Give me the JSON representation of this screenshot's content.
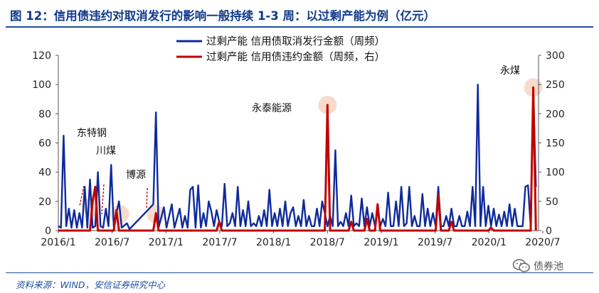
{
  "title": "图 12：信用债违约对取消发行的影响一般持续 1-3 周：以过剩产能为例（亿元）",
  "source": "资料来源：WIND，安信证券研究中心",
  "watermark": {
    "text": "债券池",
    "icon": "wechat-icon"
  },
  "colors": {
    "blue": "#0E2A9C",
    "red": "#C00000",
    "title": "#0E3A8C",
    "highlight": "#F6D5C4"
  },
  "chart_data": {
    "type": "line",
    "x_labels": [
      "2016/1",
      "2016/7",
      "2017/1",
      "2017/7",
      "2018/1",
      "2018/7",
      "2019/1",
      "2019/7",
      "2020/1",
      "2020/7"
    ],
    "y_left": {
      "min": 0,
      "max": 120,
      "ticks": [
        0,
        20,
        40,
        60,
        80,
        100,
        120
      ]
    },
    "y_right": {
      "min": 0,
      "max": 300,
      "ticks": [
        0,
        50,
        100,
        150,
        200,
        250,
        300
      ]
    },
    "legend": {
      "placement": "top-center",
      "items": [
        "过剩产能 信用债取消发行金额（周频）",
        "过剩产能 信用债违约金额（周频，右）"
      ]
    },
    "series": [
      {
        "name": "过剩产能 信用债取消发行金额（周频）",
        "axis": "left",
        "color": "#0E2A9C",
        "points": [
          [
            0,
            3
          ],
          [
            1,
            2
          ],
          [
            2,
            65
          ],
          [
            3,
            3
          ],
          [
            4,
            15
          ],
          [
            5,
            2
          ],
          [
            6,
            14
          ],
          [
            7,
            2
          ],
          [
            8,
            12
          ],
          [
            9,
            2
          ],
          [
            10,
            30
          ],
          [
            11,
            2
          ],
          [
            12,
            35
          ],
          [
            13,
            2
          ],
          [
            14,
            3
          ],
          [
            15,
            40
          ],
          [
            16,
            3
          ],
          [
            17,
            2
          ],
          [
            18,
            15
          ],
          [
            19,
            3
          ],
          [
            20,
            45
          ],
          [
            21,
            3
          ],
          [
            22,
            12
          ],
          [
            23,
            20
          ],
          [
            24,
            2
          ],
          [
            26,
            5
          ],
          [
            27,
            1
          ],
          [
            36,
            18
          ],
          [
            37,
            81
          ],
          [
            38,
            2
          ],
          [
            40,
            16
          ],
          [
            41,
            2
          ],
          [
            43,
            18
          ],
          [
            44,
            2
          ],
          [
            46,
            15
          ],
          [
            47,
            2
          ],
          [
            48,
            10
          ],
          [
            49,
            2
          ],
          [
            50,
            28
          ],
          [
            51,
            30
          ],
          [
            52,
            2
          ],
          [
            53,
            31
          ],
          [
            54,
            2
          ],
          [
            55,
            12
          ],
          [
            56,
            3
          ],
          [
            57,
            20
          ],
          [
            58,
            13
          ],
          [
            59,
            3
          ],
          [
            60,
            14
          ],
          [
            61,
            6
          ],
          [
            62,
            3
          ],
          [
            63,
            32
          ],
          [
            64,
            3
          ],
          [
            65,
            5
          ],
          [
            66,
            12
          ],
          [
            67,
            3
          ],
          [
            68,
            30
          ],
          [
            69,
            3
          ],
          [
            70,
            14
          ],
          [
            71,
            3
          ],
          [
            72,
            20
          ],
          [
            73,
            3
          ],
          [
            74,
            5
          ],
          [
            75,
            3
          ],
          [
            76,
            10
          ],
          [
            77,
            3
          ],
          [
            78,
            14
          ],
          [
            79,
            3
          ],
          [
            80,
            28
          ],
          [
            81,
            3
          ],
          [
            82,
            12
          ],
          [
            83,
            3
          ],
          [
            84,
            15
          ],
          [
            85,
            3
          ],
          [
            86,
            20
          ],
          [
            87,
            3
          ],
          [
            88,
            12
          ],
          [
            89,
            16
          ],
          [
            90,
            3
          ],
          [
            91,
            10
          ],
          [
            92,
            3
          ],
          [
            93,
            21
          ],
          [
            94,
            3
          ],
          [
            95,
            10
          ],
          [
            96,
            3
          ],
          [
            97,
            3
          ],
          [
            98,
            15
          ],
          [
            99,
            3
          ],
          [
            100,
            20
          ],
          [
            101,
            12
          ],
          [
            102,
            3
          ],
          [
            103,
            10
          ],
          [
            104,
            3
          ],
          [
            105,
            55
          ],
          [
            106,
            3
          ],
          [
            107,
            6
          ],
          [
            108,
            3
          ],
          [
            109,
            12
          ],
          [
            110,
            3
          ],
          [
            111,
            24
          ],
          [
            112,
            3
          ],
          [
            113,
            5
          ],
          [
            114,
            3
          ],
          [
            115,
            22
          ],
          [
            116,
            3
          ],
          [
            117,
            16
          ],
          [
            118,
            3
          ],
          [
            119,
            12
          ],
          [
            120,
            3
          ],
          [
            121,
            14
          ],
          [
            122,
            3
          ],
          [
            123,
            8
          ],
          [
            124,
            3
          ],
          [
            125,
            26
          ],
          [
            126,
            3
          ],
          [
            127,
            3
          ],
          [
            128,
            20
          ],
          [
            129,
            3
          ],
          [
            130,
            30
          ],
          [
            131,
            3
          ],
          [
            132,
            5
          ],
          [
            133,
            30
          ],
          [
            134,
            3
          ],
          [
            135,
            10
          ],
          [
            136,
            3
          ],
          [
            137,
            3
          ],
          [
            138,
            25
          ],
          [
            139,
            3
          ],
          [
            140,
            15
          ],
          [
            141,
            3
          ],
          [
            142,
            12
          ],
          [
            143,
            3
          ],
          [
            144,
            30
          ],
          [
            145,
            3
          ],
          [
            146,
            3
          ],
          [
            147,
            10
          ],
          [
            148,
            3
          ],
          [
            149,
            15
          ],
          [
            150,
            3
          ],
          [
            151,
            3
          ],
          [
            152,
            10
          ],
          [
            153,
            3
          ],
          [
            154,
            3
          ],
          [
            155,
            13
          ],
          [
            156,
            3
          ],
          [
            157,
            30
          ],
          [
            158,
            3
          ],
          [
            159,
            100
          ],
          [
            160,
            3
          ],
          [
            161,
            30
          ],
          [
            162,
            3
          ],
          [
            163,
            17
          ],
          [
            164,
            3
          ],
          [
            165,
            15
          ],
          [
            166,
            3
          ],
          [
            167,
            11
          ],
          [
            168,
            3
          ],
          [
            169,
            13
          ],
          [
            170,
            3
          ],
          [
            171,
            18
          ],
          [
            172,
            3
          ],
          [
            173,
            15
          ],
          [
            174,
            3
          ],
          [
            175,
            3
          ],
          [
            176,
            3
          ],
          [
            177,
            30
          ],
          [
            178,
            31
          ],
          [
            179,
            3
          ],
          [
            180,
            95
          ],
          [
            181,
            30
          ]
        ]
      },
      {
        "name": "过剩产能 信用债违约金额（周频，右）",
        "axis": "right",
        "color": "#C00000",
        "points": [
          [
            0,
            0
          ],
          [
            12,
            0
          ],
          [
            13,
            50
          ],
          [
            14,
            75
          ],
          [
            15,
            0
          ],
          [
            21,
            0
          ],
          [
            22,
            35
          ],
          [
            23,
            0
          ],
          [
            36,
            0
          ],
          [
            37,
            30
          ],
          [
            38,
            0
          ],
          [
            60,
            0
          ],
          [
            61,
            15
          ],
          [
            62,
            0
          ],
          [
            101,
            0
          ],
          [
            102,
            215
          ],
          [
            103,
            0
          ],
          [
            110,
            0
          ],
          [
            111,
            15
          ],
          [
            112,
            0
          ],
          [
            116,
            0
          ],
          [
            117,
            20
          ],
          [
            118,
            0
          ],
          [
            120,
            0
          ],
          [
            121,
            45
          ],
          [
            122,
            0
          ],
          [
            143,
            0
          ],
          [
            144,
            62
          ],
          [
            145,
            0
          ],
          [
            148,
            0
          ],
          [
            149,
            15
          ],
          [
            150,
            0
          ],
          [
            163,
            0
          ],
          [
            164,
            5
          ],
          [
            165,
            0
          ],
          [
            179,
            0
          ],
          [
            180,
            245
          ],
          [
            181,
            0
          ]
        ]
      }
    ],
    "annotations": [
      {
        "text": "东特钢",
        "x": 14,
        "y": 75,
        "axis": "right"
      },
      {
        "text": "川煤",
        "x": 22,
        "y": 35,
        "axis": "right"
      },
      {
        "text": "博源",
        "x": 37,
        "y": 30,
        "axis": "right"
      },
      {
        "text": "永泰能源",
        "x": 102,
        "y": 215,
        "axis": "right"
      },
      {
        "text": "永煤",
        "x": 180,
        "y": 245,
        "axis": "right"
      }
    ]
  }
}
